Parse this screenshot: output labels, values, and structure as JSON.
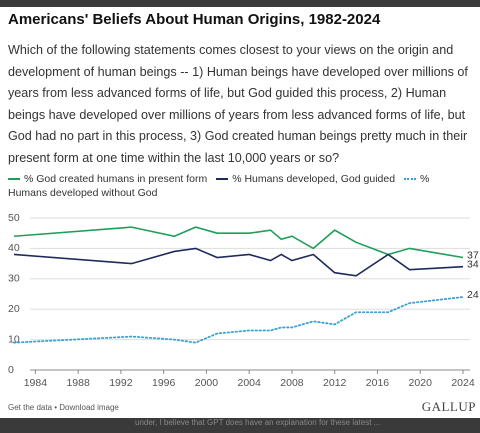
{
  "chart_data": {
    "type": "line",
    "title": "Americans' Beliefs About Human Origins, 1982-2024",
    "subtitle": "Which of the following statements comes closest to your views on the origin and development of human beings -- 1) Human beings have developed over millions of years from less advanced forms of life, but God guided this process, 2) Human beings have developed over millions of years from less advanced forms of life, but God had no part in this process, 3) God created human beings pretty much in their present form at one time within the last 10,000 years or so?",
    "x": [
      1982,
      1993,
      1997,
      1999,
      2001,
      2004,
      2006,
      2007,
      2008,
      2010,
      2012,
      2014,
      2017,
      2019,
      2024
    ],
    "series": [
      {
        "name": "% God created humans in present form",
        "color": "#1f9e5a",
        "style": "solid",
        "values": [
          44,
          47,
          44,
          47,
          45,
          45,
          46,
          43,
          44,
          40,
          46,
          42,
          38,
          40,
          37
        ]
      },
      {
        "name": "% Humans developed, God guided",
        "color": "#1f2a5c",
        "style": "solid",
        "values": [
          38,
          35,
          39,
          40,
          37,
          38,
          36,
          38,
          36,
          38,
          32,
          31,
          38,
          33,
          34
        ]
      },
      {
        "name": "% Humans developed without God",
        "color": "#3aa0d8",
        "style": "dotted",
        "values": [
          9,
          11,
          10,
          9,
          12,
          13,
          13,
          14,
          14,
          16,
          15,
          19,
          19,
          22,
          24
        ]
      }
    ],
    "xlim": [
      1982,
      2024
    ],
    "xticks": [
      1984,
      1988,
      1992,
      1996,
      2000,
      2004,
      2008,
      2012,
      2016,
      2020,
      2024
    ],
    "ylim": [
      0,
      50
    ],
    "yticks": [
      0,
      10,
      20,
      30,
      40,
      50
    ],
    "grid": true,
    "footer": "Get the data • Download image",
    "source": "GALLUP",
    "overlay_text": "under, I believe that GPT does have an explanation for these latest ..."
  }
}
